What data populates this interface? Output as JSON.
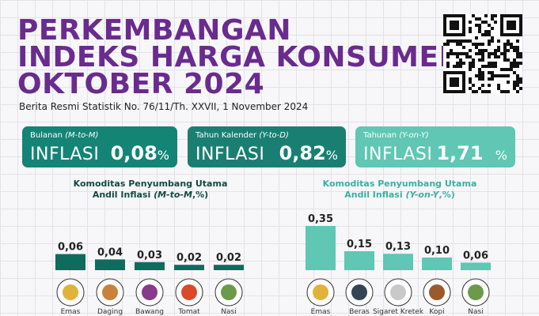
{
  "title": {
    "line1": "PERKEMBANGAN",
    "line2": "INDEKS HARGA KONSUMEN",
    "line3": "OKTOBER 2024"
  },
  "subtitle": "Berita Resmi Statistik No. 76/11/Th. XXVII, 1 November 2024",
  "cards": [
    {
      "label": "Bulanan",
      "label_italic": "(M-to-M)",
      "word": "INFLASI",
      "value": "0,08",
      "unit": "%"
    },
    {
      "label": "Tahun Kalender",
      "label_italic": "(Y-to-D)",
      "word": "INFLASI",
      "value": "0,82",
      "unit": "%"
    },
    {
      "label": "Tahunan",
      "label_italic": "(Y-on-Y)",
      "word": "INFLASI",
      "value": "1,71",
      "unit": "%"
    }
  ],
  "chart_data": [
    {
      "type": "bar",
      "title_line1": "Komoditas Penyumbang Utama",
      "title_line2_prefix": "Andil Inflasi",
      "title_line2_italic": "(M-to-M",
      "title_line2_suffix": ",%)",
      "categories": [
        "Emas",
        "Daging",
        "Bawang",
        "Tomat",
        "Nasi"
      ],
      "values": [
        0.06,
        0.04,
        0.03,
        0.02,
        0.02
      ],
      "value_labels": [
        "0,06",
        "0,04",
        "0,03",
        "0,02",
        "0,02"
      ],
      "bar_color": "#0f6b5e"
    },
    {
      "type": "bar",
      "title_line1": "Komoditas Penyumbang Utama",
      "title_line2_prefix": "Andil Inflasi",
      "title_line2_italic": "(Y-on-Y",
      "title_line2_suffix": ",%)",
      "categories": [
        "Emas",
        "Beras",
        "Sigaret Kretek",
        "Kopi",
        "Nasi"
      ],
      "values": [
        0.35,
        0.15,
        0.13,
        0.1,
        0.06
      ],
      "value_labels": [
        "0,35",
        "0,15",
        "0,13",
        "0,10",
        "0,06"
      ],
      "bar_color": "#5fc7b4"
    }
  ],
  "colors": {
    "title": "#6a2b8e",
    "card_dark": "#148476",
    "card_light": "#5fc7b4"
  }
}
